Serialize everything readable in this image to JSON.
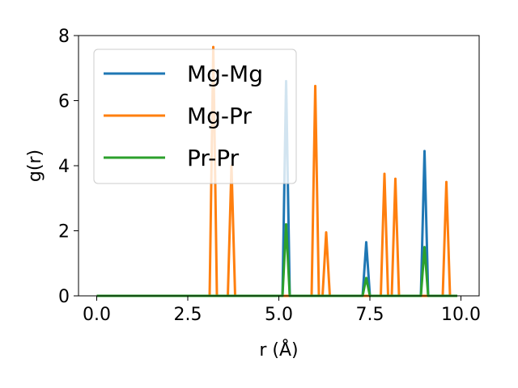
{
  "chart_data": {
    "type": "line",
    "xlabel": "r (Å)",
    "ylabel": "g(r)",
    "xlim": [
      -0.5,
      10.5
    ],
    "ylim": [
      0,
      8
    ],
    "xticks": [
      0.0,
      2.5,
      5.0,
      7.5,
      10.0
    ],
    "xtick_labels": [
      "0.0",
      "2.5",
      "5.0",
      "7.5",
      "10.0"
    ],
    "yticks": [
      0,
      2,
      4,
      6,
      8
    ],
    "ytick_labels": [
      "0",
      "2",
      "4",
      "6",
      "8"
    ],
    "grid": false,
    "legend_position": "upper-left",
    "series": [
      {
        "name": "Mg-Mg",
        "color": "#1f77b4",
        "x": [
          0.0,
          5.1,
          5.2,
          5.3,
          7.3,
          7.4,
          7.5,
          8.9,
          9.0,
          9.1,
          9.9
        ],
        "y": [
          0,
          0,
          6.6,
          0,
          0,
          1.65,
          0,
          0,
          4.45,
          0,
          0
        ]
      },
      {
        "name": "Mg-Pr",
        "color": "#ff7f0e",
        "x": [
          0.0,
          3.1,
          3.2,
          3.3,
          3.6,
          3.7,
          3.8,
          5.9,
          6.0,
          6.1,
          6.2,
          6.3,
          6.4,
          6.5,
          7.8,
          7.9,
          8.0,
          8.1,
          8.2,
          8.3,
          9.4,
          9.5,
          9.6,
          9.7,
          9.9
        ],
        "y": [
          0,
          0,
          7.65,
          0,
          0,
          4.0,
          0,
          0,
          6.45,
          0,
          0,
          1.95,
          0,
          0,
          0,
          3.75,
          0,
          0,
          3.6,
          0,
          0,
          0,
          3.5,
          0,
          0
        ]
      },
      {
        "name": "Pr-Pr",
        "color": "#2ca02c",
        "x": [
          0.0,
          5.1,
          5.2,
          5.3,
          7.3,
          7.4,
          7.5,
          8.9,
          9.0,
          9.1,
          9.9
        ],
        "y": [
          0,
          0,
          2.2,
          0,
          0,
          0.55,
          0,
          0,
          1.5,
          0,
          0
        ]
      }
    ]
  }
}
